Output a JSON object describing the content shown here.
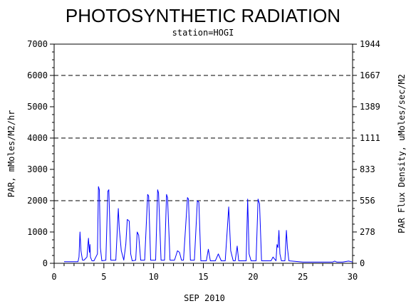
{
  "chart_data": {
    "type": "line",
    "title": "PHOTOSYNTHETIC RADIATION",
    "subtitle": "station=HOGI",
    "xlabel": "SEP 2010",
    "ylabel_left": "PAR, mMoles/M2/hr",
    "ylabel_right": "PAR Flux Density, uMoles/sec/M2",
    "xlim": [
      0,
      30
    ],
    "ylim": [
      0,
      7000
    ],
    "x_ticks": [
      0,
      5,
      10,
      15,
      20,
      25,
      30
    ],
    "x_tick_labels": [
      "0",
      "5",
      "10",
      "15",
      "20",
      "25",
      "30"
    ],
    "y_ticks_left": [
      0,
      1000,
      2000,
      3000,
      4000,
      5000,
      6000,
      7000
    ],
    "y_tick_labels_left": [
      "0",
      "1000",
      "2000",
      "3000",
      "4000",
      "5000",
      "6000",
      "7000"
    ],
    "y_ticks_right": [
      0,
      278,
      556,
      833,
      1111,
      1389,
      1667,
      1944
    ],
    "y_tick_labels_right": [
      "0",
      "278",
      "556",
      "833",
      "1111",
      "1389",
      "1667",
      "1944"
    ],
    "gridlines_y": [
      2000,
      4000,
      6000
    ],
    "grid": "dashed horizontal at 2000, 4000, 6000",
    "line_color": "#0000ff",
    "series": [
      {
        "x": [
          1.0,
          2.4,
          2.5,
          2.6,
          2.7,
          2.85,
          3.0,
          3.3,
          3.45,
          3.55,
          3.6,
          3.65,
          3.8,
          4.0,
          4.35,
          4.45,
          4.55,
          4.65,
          4.8,
          5.2,
          5.4,
          5.5,
          5.7,
          6.2,
          6.45,
          6.55,
          6.75,
          7.0,
          7.2,
          7.35,
          7.55,
          7.7,
          7.85,
          8.2,
          8.35,
          8.5,
          8.7,
          9.1,
          9.4,
          9.5,
          9.7,
          10.2,
          10.4,
          10.5,
          10.75,
          11.1,
          11.3,
          11.4,
          11.65,
          12.1,
          12.4,
          12.6,
          12.8,
          13.0,
          13.4,
          13.5,
          13.7,
          14.1,
          14.4,
          14.55,
          14.75,
          15.3,
          15.5,
          15.7,
          16.2,
          16.5,
          16.8,
          17.2,
          17.4,
          17.55,
          17.75,
          18.0,
          18.2,
          18.4,
          18.55,
          19.3,
          19.45,
          19.6,
          19.8,
          20.3,
          20.5,
          20.65,
          20.85,
          21.8,
          22.0,
          22.3,
          22.4,
          22.5,
          22.6,
          22.7,
          22.85,
          23.2,
          23.35,
          23.45,
          23.6,
          25.0,
          28.0,
          28.2,
          28.4,
          29.0,
          29.6,
          30.0
        ],
        "y": [
          50,
          50,
          200,
          1000,
          400,
          100,
          100,
          200,
          800,
          350,
          600,
          200,
          80,
          80,
          300,
          2450,
          2350,
          500,
          80,
          100,
          2300,
          2350,
          100,
          100,
          1750,
          1100,
          400,
          100,
          600,
          1400,
          1350,
          300,
          80,
          100,
          1000,
          900,
          100,
          100,
          2200,
          2150,
          100,
          100,
          2350,
          2250,
          100,
          100,
          2200,
          2100,
          100,
          100,
          400,
          350,
          100,
          100,
          2100,
          2050,
          100,
          100,
          2000,
          1950,
          80,
          80,
          450,
          80,
          80,
          300,
          80,
          80,
          1050,
          1800,
          400,
          80,
          80,
          550,
          80,
          80,
          2050,
          300,
          80,
          80,
          2050,
          1900,
          80,
          80,
          200,
          80,
          600,
          500,
          1050,
          300,
          80,
          80,
          1050,
          500,
          80,
          40,
          40,
          70,
          40,
          40,
          70,
          40
        ]
      }
    ]
  }
}
